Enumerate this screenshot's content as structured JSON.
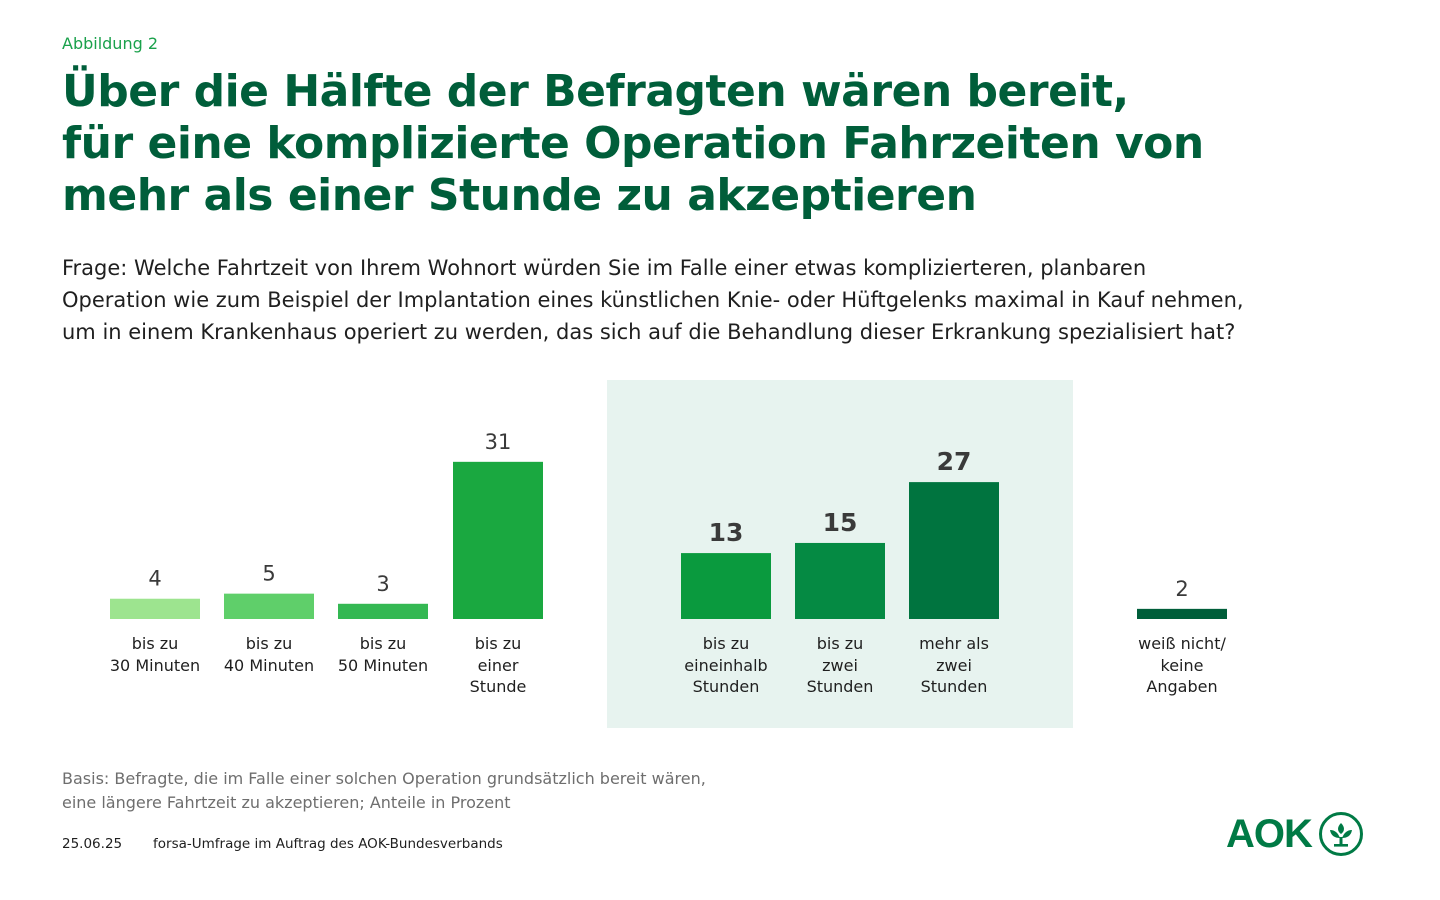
{
  "header": {
    "figure_label": "Abbildung 2",
    "title_lines": [
      "Über die Hälfte der Befragten wären bereit,",
      "für eine komplizierte Operation Fahrzeiten von",
      "mehr als einer Stunde zu akzeptieren"
    ]
  },
  "question_lines": [
    "Frage: Welche Fahrtzeit von Ihrem Wohnort würden Sie im Falle einer etwas komplizierteren, planbaren",
    "Operation wie zum Beispiel der Implantation eines künstlichen Knie- oder Hüftgelenks maximal in Kauf nehmen,",
    "um in einem Krankenhaus operiert zu werden, das sich auf die Behandlung dieser Erkrankung spezialisiert hat?"
  ],
  "chart_data": {
    "type": "bar",
    "title": "Über die Hälfte der Befragten wären bereit, für eine komplizierte Operation Fahrzeiten von mehr als einer Stunde zu akzeptieren",
    "xlabel": "",
    "ylabel": "Anteile in Prozent",
    "ylim": [
      0,
      31
    ],
    "grid": false,
    "categories": [
      [
        "bis zu",
        "30 Minuten"
      ],
      [
        "bis zu",
        "40 Minuten"
      ],
      [
        "bis zu",
        "50 Minuten"
      ],
      [
        "bis zu",
        "einer",
        "Stunde"
      ],
      [
        "bis zu",
        "eineinhalb",
        "Stunden"
      ],
      [
        "bis zu",
        "zwei",
        "Stunden"
      ],
      [
        "mehr als",
        "zwei",
        "Stunden"
      ],
      [
        "weiß nicht/",
        "keine",
        "Angaben"
      ]
    ],
    "values": [
      4,
      5,
      3,
      31,
      13,
      15,
      27,
      2
    ],
    "colors": [
      "#9de48f",
      "#5fcf6a",
      "#34b853",
      "#1aa840",
      "#0a9a3e",
      "#058a43",
      "#00743f",
      "#005e3a"
    ],
    "highlighted_categories": [
      4,
      5,
      6
    ]
  },
  "footer": {
    "basis_lines": [
      "Basis: Befragte, die im Falle einer solchen Operation grundsätzlich bereit wären,",
      "eine längere Fahrtzeit zu akzeptieren; Anteile in Prozent"
    ],
    "date": "25.06.25",
    "source": "forsa-Umfrage im Auftrag des AOK-Bundesverbands",
    "logo_text": "AOK"
  }
}
